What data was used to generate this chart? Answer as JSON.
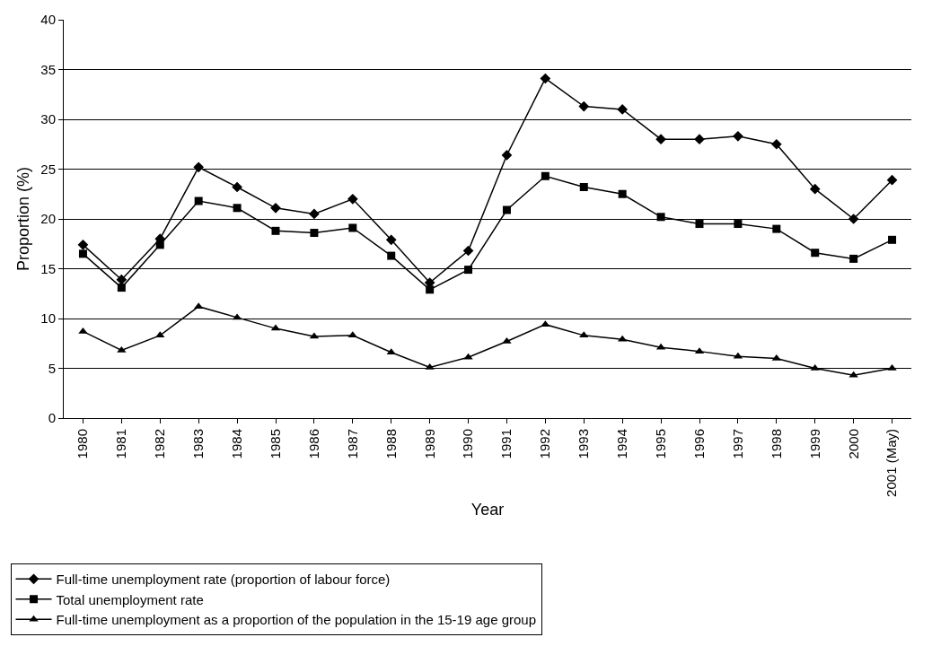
{
  "chart_data": {
    "type": "line",
    "xlabel": "Year",
    "ylabel": "Proportion (%)",
    "categories": [
      "1980",
      "1981",
      "1982",
      "1983",
      "1984",
      "1985",
      "1986",
      "1987",
      "1988",
      "1989",
      "1990",
      "1991",
      "1992",
      "1993",
      "1994",
      "1995",
      "1996",
      "1997",
      "1998",
      "1999",
      "2000",
      "2001 (May)"
    ],
    "series": [
      {
        "name": "Full-time unemployment rate (proportion of labour force)",
        "color": "#000000",
        "marker": "diamond",
        "values": [
          17.4,
          13.9,
          18.0,
          25.2,
          23.2,
          21.1,
          20.5,
          22.0,
          17.9,
          13.6,
          16.8,
          26.4,
          34.1,
          31.3,
          31.0,
          28.0,
          28.0,
          28.3,
          27.5,
          23.0,
          20.0,
          23.9
        ]
      },
      {
        "name": "Total unemployment rate",
        "color": "#000000",
        "marker": "square",
        "values": [
          16.5,
          13.1,
          17.4,
          21.8,
          21.1,
          18.8,
          18.6,
          19.1,
          16.3,
          12.9,
          14.9,
          20.9,
          24.3,
          23.2,
          22.5,
          20.2,
          19.5,
          19.5,
          19.0,
          16.6,
          16.0,
          17.9
        ]
      },
      {
        "name": "Full-time unemployment as a proportion of the population in the 15-19 age group",
        "color": "#000000",
        "marker": "triangle",
        "values": [
          8.7,
          6.8,
          8.3,
          11.2,
          10.1,
          9.0,
          8.2,
          8.3,
          6.6,
          5.1,
          6.1,
          7.7,
          9.4,
          8.3,
          7.9,
          7.1,
          6.7,
          6.2,
          6.0,
          5.0,
          4.3,
          5.0
        ]
      }
    ],
    "ylim": [
      0,
      40
    ],
    "yticks": [
      0,
      5,
      10,
      15,
      20,
      25,
      30,
      35,
      40
    ],
    "grid": "y",
    "legend": "bottom",
    "line_style": "solid"
  }
}
